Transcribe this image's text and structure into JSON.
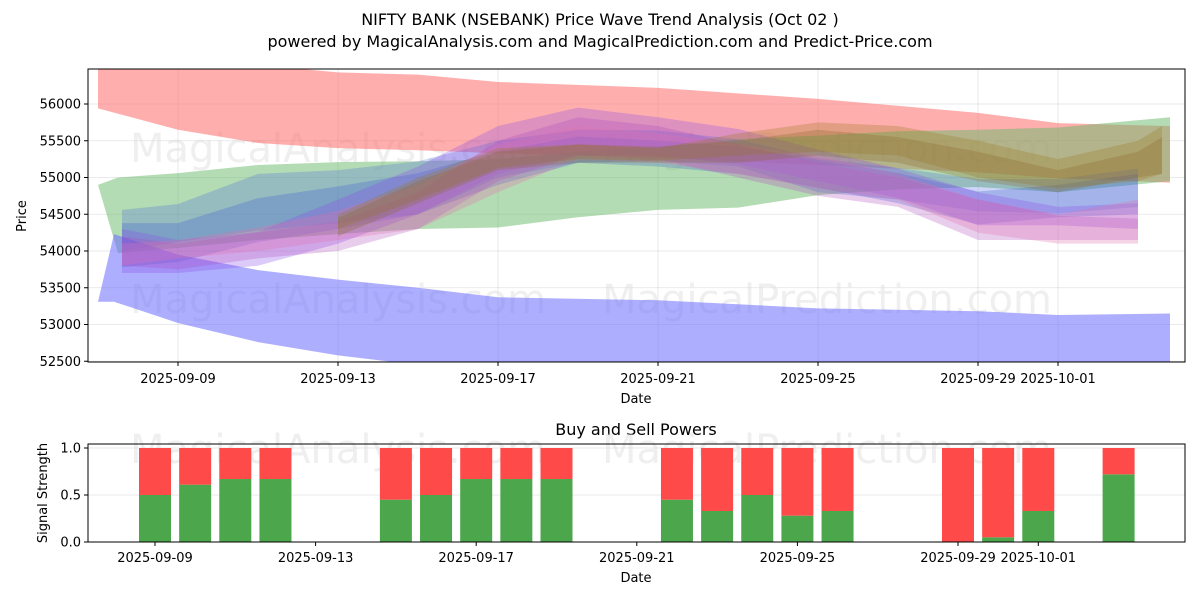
{
  "title_line1": "NIFTY BANK (NSEBANK) Price Wave Trend Analysis (Oct 02 )",
  "title_line2": "powered by MagicalAnalysis.com and MagicalPrediction.com and Predict-Price.com",
  "watermarks": [
    "MagicalAnalysis.com",
    "MagicalPrediction.com"
  ],
  "chart_data": [
    {
      "type": "area",
      "title": "",
      "xlabel": "Date",
      "ylabel": "Price",
      "ylim": [
        52480,
        56450
      ],
      "x_start_date": "2025-09-09",
      "xlim_days": [
        -2.3,
        4.4
      ],
      "x_ticks": [
        {
          "label": "2025-09-09",
          "day": 0
        },
        {
          "label": "2025-09-13",
          "day": 4
        },
        {
          "label": "2025-09-17",
          "day": 8
        },
        {
          "label": "2025-09-21",
          "day": 12
        },
        {
          "label": "2025-09-25",
          "day": 16
        },
        {
          "label": "2025-09-29",
          "day": 20
        },
        {
          "label": "2025-10-01",
          "day": 22
        }
      ],
      "y_ticks": [
        52500,
        53000,
        53500,
        54000,
        54500,
        55000,
        55500,
        56000
      ],
      "grid": true,
      "bands": [
        {
          "name": "upper-red-band",
          "color": "#ff6b6b",
          "opacity": 0.55,
          "points": [
            [
              -2.0,
              55940,
              56600
            ],
            [
              0,
              55650,
              56600
            ],
            [
              2,
              55470,
              56530
            ],
            [
              4,
              55400,
              56430
            ],
            [
              6,
              55370,
              56400
            ],
            [
              8,
              55330,
              56300
            ],
            [
              12,
              55270,
              56220
            ],
            [
              16,
              55170,
              56070
            ],
            [
              20,
              55070,
              55880
            ],
            [
              22,
              54990,
              55740
            ],
            [
              24.8,
              54930,
              55700
            ]
          ]
        },
        {
          "name": "green-band",
          "color": "#6ab96a",
          "opacity": 0.5,
          "points": [
            [
              -2.0,
              54900,
              54900
            ],
            [
              -1.5,
              53970,
              55000
            ],
            [
              0,
              54040,
              55060
            ],
            [
              2,
              54150,
              55170
            ],
            [
              4,
              54230,
              55210
            ],
            [
              6,
              54300,
              55220
            ],
            [
              8,
              54320,
              55250
            ],
            [
              10,
              54460,
              55350
            ],
            [
              12,
              54560,
              55420
            ],
            [
              14,
              54590,
              55520
            ],
            [
              16,
              54760,
              55570
            ],
            [
              18,
              54840,
              55630
            ],
            [
              20,
              54870,
              55650
            ],
            [
              22,
              54800,
              55680
            ],
            [
              24.8,
              54950,
              55820
            ]
          ]
        },
        {
          "name": "lower-blue-band",
          "color": "#6b6bff",
          "opacity": 0.55,
          "points": [
            [
              -2.0,
              53310,
              53310
            ],
            [
              -1.6,
              53310,
              54230
            ],
            [
              0,
              53020,
              53950
            ],
            [
              2,
              52760,
              53740
            ],
            [
              4,
              52580,
              53610
            ],
            [
              6,
              52450,
              53500
            ],
            [
              8,
              52400,
              53370
            ],
            [
              12,
              52380,
              53330
            ],
            [
              16,
              52380,
              53220
            ],
            [
              20,
              52380,
              53180
            ],
            [
              22,
              52380,
              53130
            ],
            [
              24.8,
              52380,
              53150
            ]
          ]
        },
        {
          "name": "blue-wave-1",
          "color": "#4a6be0",
          "opacity": 0.28,
          "points": [
            [
              -1.4,
              54000,
              54560
            ],
            [
              0,
              54120,
              54640
            ],
            [
              2,
              54280,
              55050
            ],
            [
              4,
              54380,
              55100
            ],
            [
              6,
              54500,
              55220
            ],
            [
              8,
              55000,
              55500
            ],
            [
              10,
              55200,
              55650
            ],
            [
              12,
              55230,
              55640
            ],
            [
              14,
              55150,
              55520
            ],
            [
              16,
              54800,
              55260
            ],
            [
              18,
              54700,
              55130
            ],
            [
              20,
              54540,
              54980
            ],
            [
              22,
              54510,
              54980
            ],
            [
              24,
              54600,
              55120
            ]
          ]
        },
        {
          "name": "blue-wave-2",
          "color": "#3a5fcf",
          "opacity": 0.28,
          "points": [
            [
              -1.4,
              53780,
              54380
            ],
            [
              0,
              53850,
              54380
            ],
            [
              2,
              54120,
              54720
            ],
            [
              4,
              54300,
              54880
            ],
            [
              6,
              54500,
              55060
            ],
            [
              8,
              54900,
              55360
            ],
            [
              10,
              55200,
              55560
            ],
            [
              12,
              55150,
              55500
            ],
            [
              14,
              55050,
              55420
            ],
            [
              16,
              54860,
              55240
            ],
            [
              18,
              54650,
              55060
            ],
            [
              20,
              54360,
              54810
            ],
            [
              22,
              54460,
              54900
            ],
            [
              24,
              54500,
              55050
            ]
          ]
        },
        {
          "name": "purple-wave-1",
          "color": "#8a4fe8",
          "opacity": 0.3,
          "points": [
            [
              -1.4,
              53700,
              54300
            ],
            [
              0,
              53700,
              54150
            ],
            [
              2,
              53800,
              54260
            ],
            [
              4,
              54100,
              54700
            ],
            [
              6,
              54500,
              55150
            ],
            [
              8,
              55050,
              55700
            ],
            [
              10,
              55300,
              55950
            ],
            [
              12,
              55300,
              55820
            ],
            [
              14,
              55180,
              55660
            ],
            [
              16,
              54950,
              55380
            ],
            [
              18,
              54720,
              55120
            ],
            [
              20,
              54350,
              54800
            ],
            [
              22,
              54350,
              54600
            ],
            [
              24,
              54300,
              54650
            ]
          ]
        },
        {
          "name": "purple-wave-2",
          "color": "#b04ac0",
          "opacity": 0.28,
          "points": [
            [
              -1.4,
              53800,
              54200
            ],
            [
              0,
              53750,
              54100
            ],
            [
              2,
              53900,
              54250
            ],
            [
              4,
              54000,
              54400
            ],
            [
              6,
              54300,
              54800
            ],
            [
              8,
              54950,
              55500
            ],
            [
              10,
              55300,
              55820
            ],
            [
              12,
              55250,
              55700
            ],
            [
              14,
              55000,
              55450
            ],
            [
              16,
              54750,
              55200
            ],
            [
              18,
              54600,
              55000
            ],
            [
              20,
              54150,
              54700
            ],
            [
              22,
              54150,
              54480
            ],
            [
              24,
              54150,
              54440
            ]
          ]
        },
        {
          "name": "pink-wave",
          "color": "#e070b0",
          "opacity": 0.3,
          "points": [
            [
              -1.4,
              53800,
              54100
            ],
            [
              0,
              53900,
              54150
            ],
            [
              2,
              54000,
              54320
            ],
            [
              4,
              54150,
              54550
            ],
            [
              6,
              54300,
              54900
            ],
            [
              8,
              54800,
              55450
            ],
            [
              10,
              55250,
              55700
            ],
            [
              12,
              55200,
              55600
            ],
            [
              14,
              55050,
              55450
            ],
            [
              16,
              54850,
              55300
            ],
            [
              18,
              54700,
              55050
            ],
            [
              20,
              54250,
              54700
            ],
            [
              22,
              54100,
              54500
            ],
            [
              24,
              54100,
              54700
            ]
          ]
        },
        {
          "name": "olive-wave-1",
          "color": "#9a7a20",
          "opacity": 0.3,
          "points": [
            [
              4,
              54300,
              54500
            ],
            [
              6,
              54700,
              55000
            ],
            [
              8,
              55130,
              55400
            ],
            [
              10,
              55250,
              55450
            ],
            [
              12,
              55230,
              55400
            ],
            [
              14,
              55300,
              55600
            ],
            [
              16,
              55350,
              55750
            ],
            [
              18,
              55300,
              55700
            ],
            [
              20,
              55000,
              55500
            ],
            [
              22,
              54850,
              55250
            ],
            [
              24,
              54950,
              55500
            ],
            [
              24.6,
              55050,
              55700
            ]
          ]
        },
        {
          "name": "olive-wave-2",
          "color": "#8a6a30",
          "opacity": 0.3,
          "points": [
            [
              4,
              54200,
              54450
            ],
            [
              6,
              54650,
              54950
            ],
            [
              8,
              55100,
              55350
            ],
            [
              10,
              55200,
              55450
            ],
            [
              12,
              55200,
              55420
            ],
            [
              14,
              55200,
              55500
            ],
            [
              16,
              55300,
              55650
            ],
            [
              18,
              55200,
              55550
            ],
            [
              20,
              54950,
              55350
            ],
            [
              22,
              54800,
              55100
            ],
            [
              24,
              55000,
              55350
            ],
            [
              24.6,
              55050,
              55550
            ]
          ]
        }
      ]
    },
    {
      "type": "bar",
      "title": "Buy and Sell Powers",
      "xlabel": "Date",
      "ylabel": "Signal Strength",
      "ylim": [
        0,
        1.05
      ],
      "y_ticks": [
        0.0,
        0.5,
        1.0
      ],
      "grid": true,
      "x_ticks": [
        {
          "label": "2025-09-09",
          "day": 0
        },
        {
          "label": "2025-09-13",
          "day": 4
        },
        {
          "label": "2025-09-17",
          "day": 8
        },
        {
          "label": "2025-09-21",
          "day": 12
        },
        {
          "label": "2025-09-25",
          "day": 16
        },
        {
          "label": "2025-09-29",
          "day": 20
        },
        {
          "label": "2025-10-01",
          "day": 22
        }
      ],
      "categories": [
        "2025-09-09",
        "2025-09-10",
        "2025-09-11",
        "2025-09-12",
        "2025-09-15",
        "2025-09-16",
        "2025-09-17",
        "2025-09-18",
        "2025-09-19",
        "2025-09-22",
        "2025-09-23",
        "2025-09-24",
        "2025-09-25",
        "2025-09-26",
        "2025-09-29",
        "2025-09-30",
        "2025-10-01",
        "2025-10-03"
      ],
      "days": [
        0,
        1,
        2,
        3,
        6,
        7,
        8,
        9,
        10,
        13,
        14,
        15,
        16,
        17,
        20,
        21,
        22,
        24
      ],
      "series": [
        {
          "name": "Buy Power",
          "color": "#4ca64c",
          "values": [
            0.5,
            0.61,
            0.67,
            0.67,
            0.45,
            0.5,
            0.67,
            0.67,
            0.67,
            0.45,
            0.33,
            0.5,
            0.28,
            0.33,
            0.0,
            0.05,
            0.33,
            0.72
          ]
        },
        {
          "name": "Sell Power",
          "color": "#ff4a4a",
          "values": [
            0.5,
            0.39,
            0.33,
            0.33,
            0.55,
            0.5,
            0.33,
            0.33,
            0.33,
            0.55,
            0.67,
            0.5,
            0.72,
            0.67,
            1.0,
            0.95,
            0.67,
            0.28
          ]
        }
      ]
    }
  ]
}
